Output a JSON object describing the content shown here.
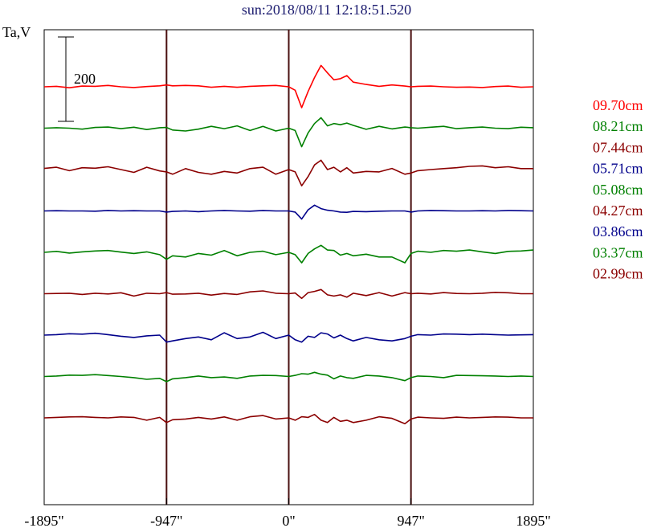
{
  "title": "sun:2018/08/11 12:18:51.520",
  "colors": {
    "red": "#ff0000",
    "green": "#008000",
    "maroon": "#8b0000",
    "navy": "#00008b",
    "frame": "#000000",
    "vline": "#4a1010"
  },
  "chart_data": {
    "type": "line",
    "title": "sun:2018/08/11 12:18:51.520",
    "ylabel": "Ta,V",
    "xlabel": "",
    "x_unit": "arcsec",
    "x_ticks": [
      -1895,
      -947,
      0,
      947,
      1895
    ],
    "x_tick_labels": [
      "-1895\"",
      "-947\"",
      "0\"",
      "947\"",
      "1895\""
    ],
    "xlim": [
      -1895,
      1895
    ],
    "vertical_lines": [
      -947,
      0,
      947
    ],
    "scale_bar": {
      "value": 200,
      "label": "200"
    },
    "legend_placement": "right",
    "x": [
      -1895,
      -1800,
      -1700,
      -1600,
      -1500,
      -1400,
      -1300,
      -1200,
      -1100,
      -1000,
      -947,
      -900,
      -800,
      -700,
      -600,
      -500,
      -400,
      -300,
      -200,
      -100,
      0,
      50,
      100,
      150,
      200,
      250,
      300,
      350,
      400,
      450,
      500,
      600,
      700,
      800,
      900,
      947,
      1000,
      1100,
      1200,
      1300,
      1400,
      1500,
      1600,
      1700,
      1800,
      1895
    ],
    "series": [
      {
        "name": "09.70cm",
        "color": "#ff0000",
        "values": [
          0,
          2,
          -4,
          3,
          2,
          6,
          0,
          -3,
          1,
          4,
          8,
          4,
          6,
          4,
          -2,
          2,
          -2,
          2,
          4,
          6,
          0,
          -15,
          -90,
          -20,
          40,
          92,
          60,
          30,
          35,
          48,
          20,
          10,
          2,
          8,
          3,
          0,
          2,
          3,
          0,
          -2,
          -1,
          -3,
          1,
          3,
          -2,
          0
        ]
      },
      {
        "name": "08.21cm",
        "color": "#008000",
        "values": [
          0,
          2,
          0,
          -4,
          3,
          5,
          -2,
          4,
          -6,
          2,
          3,
          -8,
          -12,
          -4,
          8,
          -2,
          10,
          -10,
          8,
          -12,
          0,
          -10,
          -80,
          -20,
          20,
          45,
          10,
          20,
          15,
          22,
          12,
          -5,
          8,
          -3,
          5,
          2,
          0,
          4,
          8,
          -2,
          2,
          5,
          0,
          -2,
          4,
          2
        ]
      },
      {
        "name": "07.44cm",
        "color": "#8b0000",
        "values": [
          5,
          10,
          -5,
          8,
          6,
          12,
          0,
          -12,
          10,
          -6,
          -10,
          -20,
          4,
          -12,
          -20,
          -8,
          -15,
          4,
          10,
          -20,
          0,
          -10,
          -70,
          -30,
          20,
          40,
          0,
          10,
          -10,
          8,
          -15,
          -8,
          -10,
          5,
          -20,
          -15,
          -5,
          0,
          4,
          8,
          14,
          16,
          8,
          12,
          4,
          4
        ]
      },
      {
        "name": "05.71cm",
        "color": "#00008b",
        "values": [
          0,
          1,
          0,
          0,
          -1,
          2,
          0,
          1,
          0,
          0,
          -5,
          -2,
          0,
          -3,
          0,
          2,
          0,
          -1,
          2,
          0,
          0,
          -5,
          -35,
          5,
          25,
          10,
          3,
          0,
          -5,
          -6,
          -2,
          -3,
          -1,
          0,
          0,
          -5,
          0,
          2,
          1,
          0,
          0,
          1,
          0,
          2,
          1,
          0
        ]
      },
      {
        "name": "05.08cm",
        "color": "#008000",
        "values": [
          0,
          4,
          -3,
          2,
          6,
          8,
          1,
          -5,
          2,
          -10,
          -30,
          -15,
          -20,
          -5,
          -12,
          8,
          -15,
          0,
          5,
          -10,
          0,
          -10,
          -45,
          -5,
          15,
          30,
          10,
          8,
          -12,
          -5,
          -15,
          -8,
          -20,
          -20,
          -45,
          -5,
          5,
          0,
          8,
          5,
          10,
          2,
          -5,
          4,
          6,
          10
        ]
      },
      {
        "name": "04.27cm",
        "color": "#8b0000",
        "values": [
          0,
          1,
          2,
          -3,
          2,
          -1,
          4,
          -10,
          2,
          0,
          5,
          -2,
          -1,
          2,
          -6,
          1,
          -3,
          8,
          12,
          2,
          0,
          3,
          -20,
          5,
          10,
          18,
          -5,
          -10,
          -5,
          -15,
          2,
          -8,
          5,
          -10,
          5,
          0,
          2,
          -1,
          5,
          1,
          0,
          2,
          6,
          4,
          0,
          0
        ]
      },
      {
        "name": "03.86cm",
        "color": "#00008b",
        "values": [
          0,
          2,
          6,
          4,
          8,
          2,
          -5,
          -10,
          -3,
          0,
          -30,
          -25,
          -15,
          -8,
          -20,
          10,
          -15,
          -8,
          12,
          -15,
          0,
          -20,
          -30,
          -5,
          -10,
          10,
          5,
          -12,
          0,
          -15,
          -25,
          -10,
          -20,
          -25,
          -15,
          -5,
          2,
          0,
          5,
          4,
          2,
          4,
          2,
          0,
          1,
          2
        ]
      },
      {
        "name": "03.37cm",
        "color": "#008000",
        "values": [
          0,
          2,
          6,
          5,
          8,
          4,
          0,
          -5,
          -12,
          -8,
          -22,
          -10,
          -5,
          2,
          -5,
          -2,
          -8,
          2,
          5,
          4,
          0,
          5,
          12,
          10,
          18,
          10,
          6,
          -10,
          2,
          -5,
          -8,
          5,
          2,
          -5,
          -18,
          -5,
          2,
          0,
          -5,
          5,
          4,
          3,
          2,
          0,
          2,
          0
        ]
      },
      {
        "name": "02.99cm",
        "color": "#8b0000",
        "values": [
          0,
          2,
          4,
          5,
          2,
          0,
          4,
          2,
          -10,
          2,
          -20,
          -8,
          -5,
          2,
          -5,
          4,
          -10,
          5,
          10,
          -5,
          0,
          -10,
          5,
          2,
          15,
          -10,
          -20,
          2,
          -15,
          -10,
          -20,
          -10,
          5,
          -2,
          -25,
          -5,
          3,
          0,
          -2,
          3,
          0,
          2,
          4,
          3,
          0,
          0
        ]
      }
    ]
  }
}
